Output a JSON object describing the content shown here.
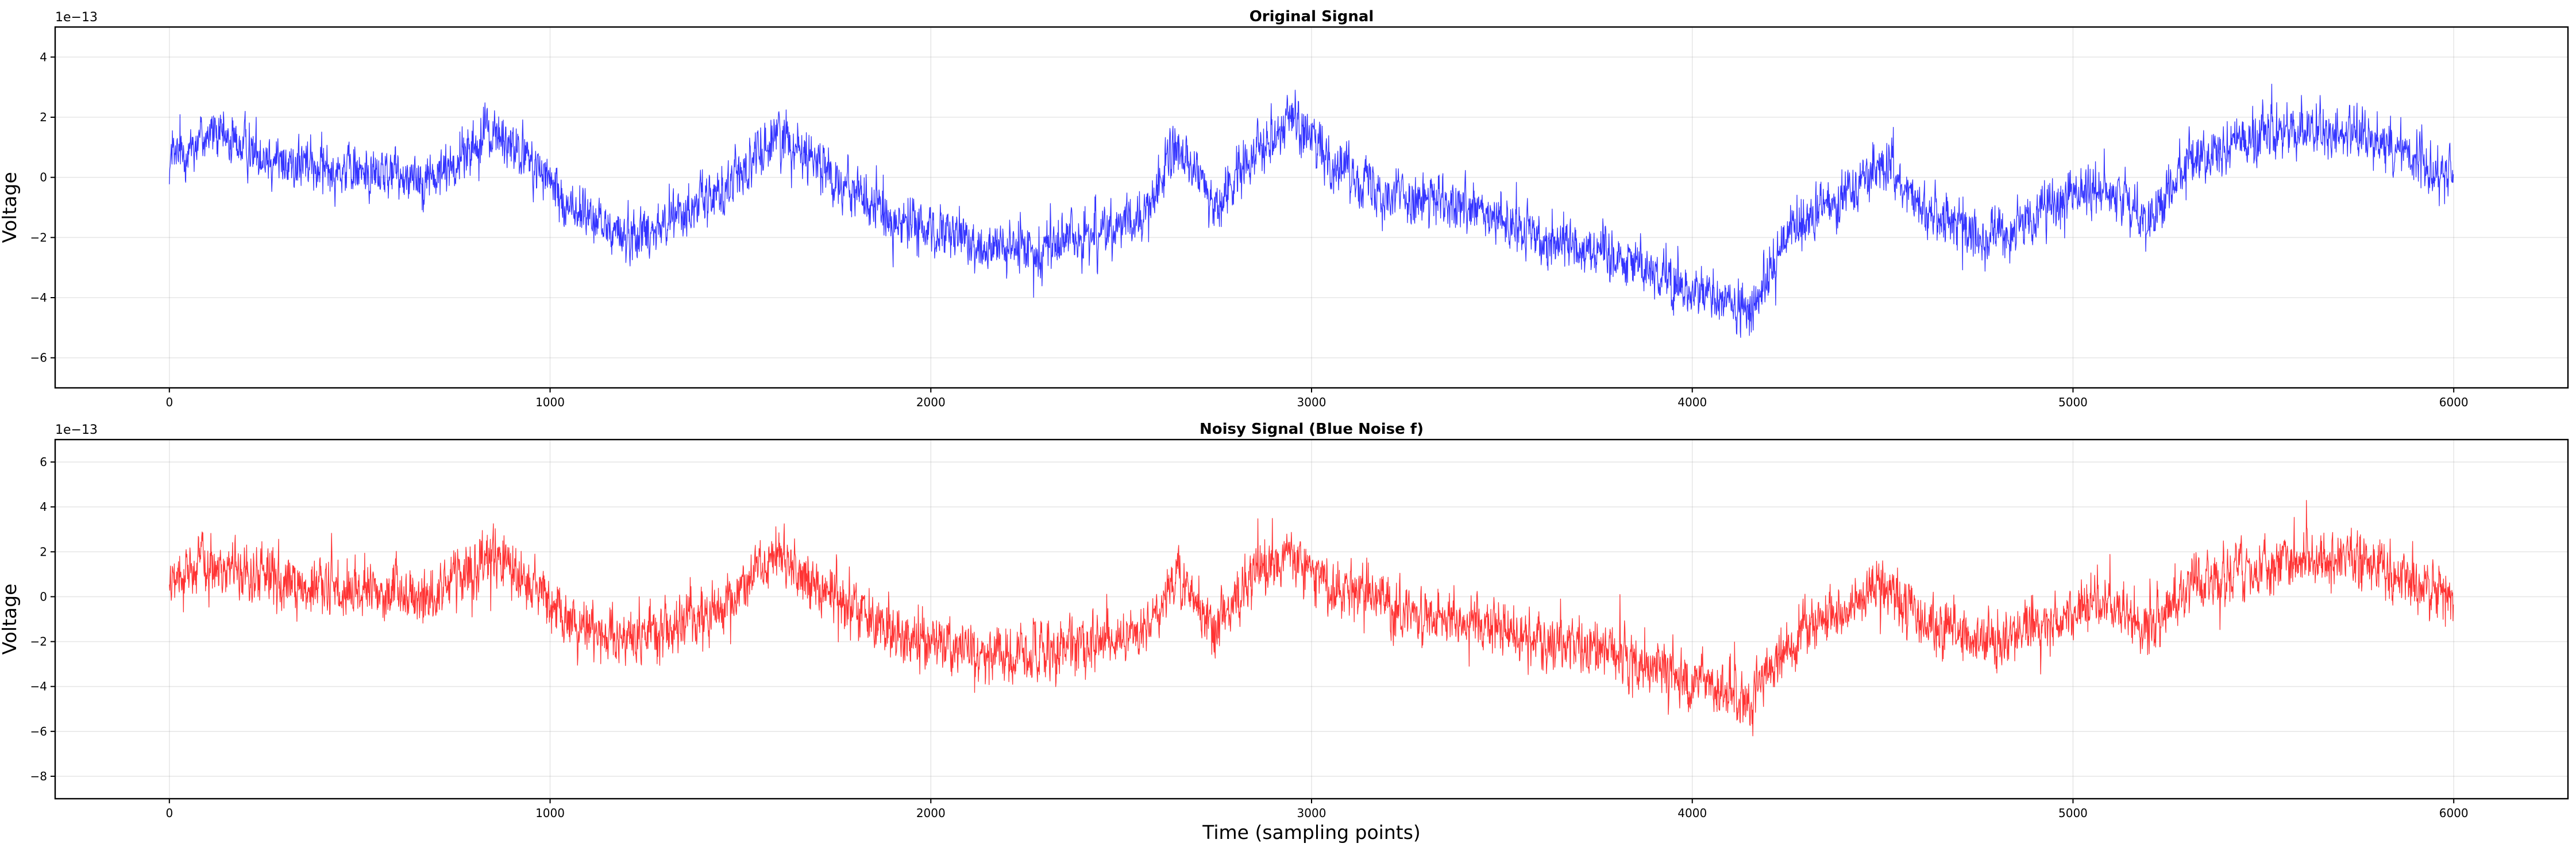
{
  "chart_data": [
    {
      "type": "line",
      "title": "Original Signal",
      "xlabel": "",
      "ylabel": "Voltage",
      "y_offset_label": "1e−13",
      "xlim": [
        -300,
        6300
      ],
      "ylim": [
        -7,
        5
      ],
      "x_ticks": [
        0,
        1000,
        2000,
        3000,
        4000,
        5000,
        6000
      ],
      "x_tick_labels": [
        "0",
        "1000",
        "2000",
        "3000",
        "4000",
        "5000",
        "6000"
      ],
      "y_ticks": [
        -6,
        -4,
        -2,
        0,
        2,
        4
      ],
      "y_tick_labels": [
        "−6",
        "−4",
        "−2",
        "0",
        "2",
        "4"
      ],
      "grid": true,
      "series": [
        {
          "color": "#0000ff",
          "n_points": 6000,
          "trend_x": [
            0,
            100,
            300,
            500,
            700,
            850,
            950,
            1050,
            1200,
            1300,
            1450,
            1600,
            1700,
            1800,
            1900,
            2000,
            2200,
            2400,
            2550,
            2650,
            2750,
            2850,
            2950,
            3050,
            3200,
            3400,
            3600,
            3800,
            3950,
            4050,
            4150,
            4250,
            4350,
            4500,
            4600,
            4750,
            4900,
            5000,
            5100,
            5200,
            5300,
            5500,
            5700,
            5850,
            6000
          ],
          "trend_y": [
            0.5,
            1.5,
            0.5,
            0.2,
            0.0,
            1.5,
            0.5,
            -1.0,
            -2.0,
            -1.5,
            -0.5,
            1.5,
            0.5,
            -0.5,
            -1.5,
            -1.8,
            -2.5,
            -2.0,
            -1.5,
            1.0,
            -1.0,
            1.0,
            2.0,
            0.5,
            -0.5,
            -1.0,
            -2.0,
            -2.5,
            -3.5,
            -4.0,
            -4.5,
            -2.0,
            -1.0,
            0.5,
            -1.0,
            -2.0,
            -1.5,
            -0.5,
            -0.5,
            -1.5,
            0.5,
            1.5,
            1.5,
            1.0,
            0.0
          ],
          "noise_amplitude": 0.9
        }
      ]
    },
    {
      "type": "line",
      "title": "Noisy Signal (Blue Noise f)",
      "xlabel": "Time (sampling points)",
      "ylabel": "Voltage",
      "y_offset_label": "1e−13",
      "xlim": [
        -300,
        6300
      ],
      "ylim": [
        -9,
        7
      ],
      "x_ticks": [
        0,
        1000,
        2000,
        3000,
        4000,
        5000,
        6000
      ],
      "x_tick_labels": [
        "0",
        "1000",
        "2000",
        "3000",
        "4000",
        "5000",
        "6000"
      ],
      "y_ticks": [
        -8,
        -6,
        -4,
        -2,
        0,
        2,
        4,
        6
      ],
      "y_tick_labels": [
        "−8",
        "−6",
        "−4",
        "−2",
        "0",
        "2",
        "4",
        "6"
      ],
      "grid": true,
      "series": [
        {
          "color": "#ff0000",
          "n_points": 6000,
          "trend_x": [
            0,
            100,
            300,
            500,
            700,
            850,
            950,
            1050,
            1200,
            1300,
            1450,
            1600,
            1700,
            1800,
            1900,
            2000,
            2200,
            2400,
            2550,
            2650,
            2750,
            2850,
            2950,
            3050,
            3200,
            3400,
            3600,
            3800,
            3950,
            4050,
            4150,
            4250,
            4350,
            4500,
            4600,
            4750,
            4900,
            5000,
            5100,
            5200,
            5300,
            5500,
            5700,
            5850,
            6000
          ],
          "trend_y": [
            0.5,
            1.5,
            0.5,
            0.2,
            0.0,
            1.8,
            0.5,
            -1.0,
            -2.0,
            -1.5,
            -0.5,
            1.8,
            0.5,
            -0.5,
            -1.8,
            -2.0,
            -2.8,
            -2.2,
            -1.5,
            1.0,
            -1.5,
            1.0,
            2.0,
            0.5,
            -0.5,
            -1.0,
            -2.0,
            -2.5,
            -3.5,
            -4.0,
            -4.8,
            -2.0,
            -1.0,
            0.5,
            -1.0,
            -2.0,
            -1.5,
            -0.5,
            -0.5,
            -1.5,
            0.5,
            1.5,
            1.8,
            1.0,
            0.0
          ],
          "noise_amplitude": 1.3
        }
      ]
    }
  ]
}
